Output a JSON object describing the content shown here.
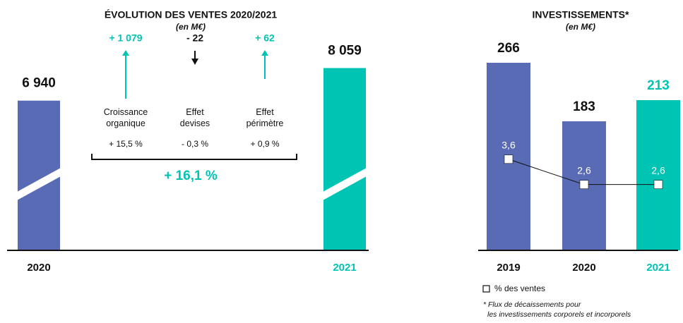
{
  "chart_data": [
    {
      "type": "bridge",
      "title": "ÉVOLUTION DES VENTES 2020/2021",
      "subtitle": "(en M€)",
      "categories": [
        "2020",
        "2021"
      ],
      "values": [
        6940,
        8059
      ],
      "value_labels": [
        "6 940",
        "8 059"
      ],
      "colors": [
        "#5a6bb5",
        "#00c4b3"
      ],
      "ylim": [
        1800,
        8700
      ],
      "effects": [
        {
          "name": "Croissance organique",
          "value": 1079,
          "label": "+ 1 079",
          "percent": 15.5,
          "percent_label": "+ 15,5 %"
        },
        {
          "name": "Effet devises",
          "value": -22,
          "label": "- 22",
          "percent": -0.3,
          "percent_label": "- 0,3 %"
        },
        {
          "name": "Effet périmètre",
          "value": 62,
          "label": "+ 62",
          "percent": 0.9,
          "percent_label": "+ 0,9 %"
        }
      ],
      "total_change": 16.1,
      "total_change_label": "+ 16,1 %"
    },
    {
      "type": "bar_line",
      "title": "INVESTISSEMENTS*",
      "subtitle": "(en M€)",
      "categories": [
        "2019",
        "2020",
        "2021"
      ],
      "values": [
        266,
        183,
        213
      ],
      "value_labels": [
        "266",
        "183",
        "213"
      ],
      "colors": [
        "#5a6bb5",
        "#5a6bb5",
        "#00c4b3"
      ],
      "ylim": [
        0,
        280
      ],
      "line": {
        "name": "% des ventes",
        "values": [
          3.6,
          2.6,
          2.6
        ],
        "value_labels": [
          "3,6",
          "2,6",
          "2,6"
        ],
        "axis": "y2",
        "color": "#111"
      },
      "y2lim": [
        0,
        7.8
      ],
      "footnote": [
        "* Flux de décaissements pour",
        "les investissements corporels et incorporels"
      ]
    }
  ]
}
